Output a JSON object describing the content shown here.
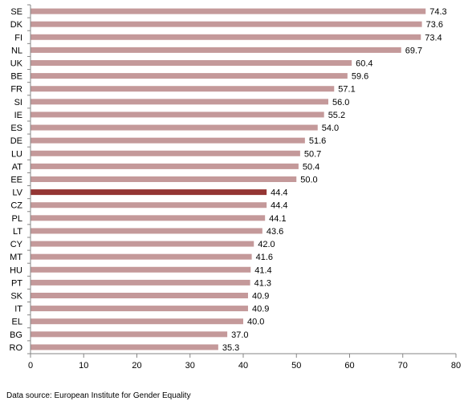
{
  "chart_data": {
    "type": "bar",
    "orientation": "horizontal",
    "categories": [
      "SE",
      "DK",
      "FI",
      "NL",
      "UK",
      "BE",
      "FR",
      "SI",
      "IE",
      "ES",
      "DE",
      "LU",
      "AT",
      "EE",
      "LV",
      "CZ",
      "PL",
      "LT",
      "CY",
      "MT",
      "HU",
      "PT",
      "SK",
      "IT",
      "EL",
      "BG",
      "RO"
    ],
    "values": [
      74.3,
      73.6,
      73.4,
      69.7,
      60.4,
      59.6,
      57.1,
      56.0,
      55.2,
      54.0,
      51.6,
      50.7,
      50.4,
      50.0,
      44.4,
      44.4,
      44.1,
      43.6,
      42.0,
      41.6,
      41.4,
      41.3,
      40.9,
      40.9,
      40.0,
      37.0,
      35.3
    ],
    "value_labels": [
      "74.3",
      "73.6",
      "73.4",
      "69.7",
      "60.4",
      "59.6",
      "57.1",
      "56.0",
      "55.2",
      "54.0",
      "51.6",
      "50.7",
      "50.4",
      "50.0",
      "44.4",
      "44.4",
      "44.1",
      "43.6",
      "42.0",
      "41.6",
      "41.4",
      "41.3",
      "40.9",
      "40.9",
      "40.0",
      "37.0",
      "35.3"
    ],
    "highlight": "LV",
    "xlim": [
      0,
      80
    ],
    "x_ticks": [
      "0",
      "10",
      "20",
      "30",
      "40",
      "50",
      "60",
      "70",
      "80"
    ],
    "grid": false,
    "title": "",
    "xlabel": "",
    "ylabel": "",
    "colors": {
      "bar": "#c4999a",
      "highlight": "#943634",
      "axis": "#868686"
    }
  },
  "footer": {
    "source": "Data source: European Institute for Gender Equality"
  }
}
